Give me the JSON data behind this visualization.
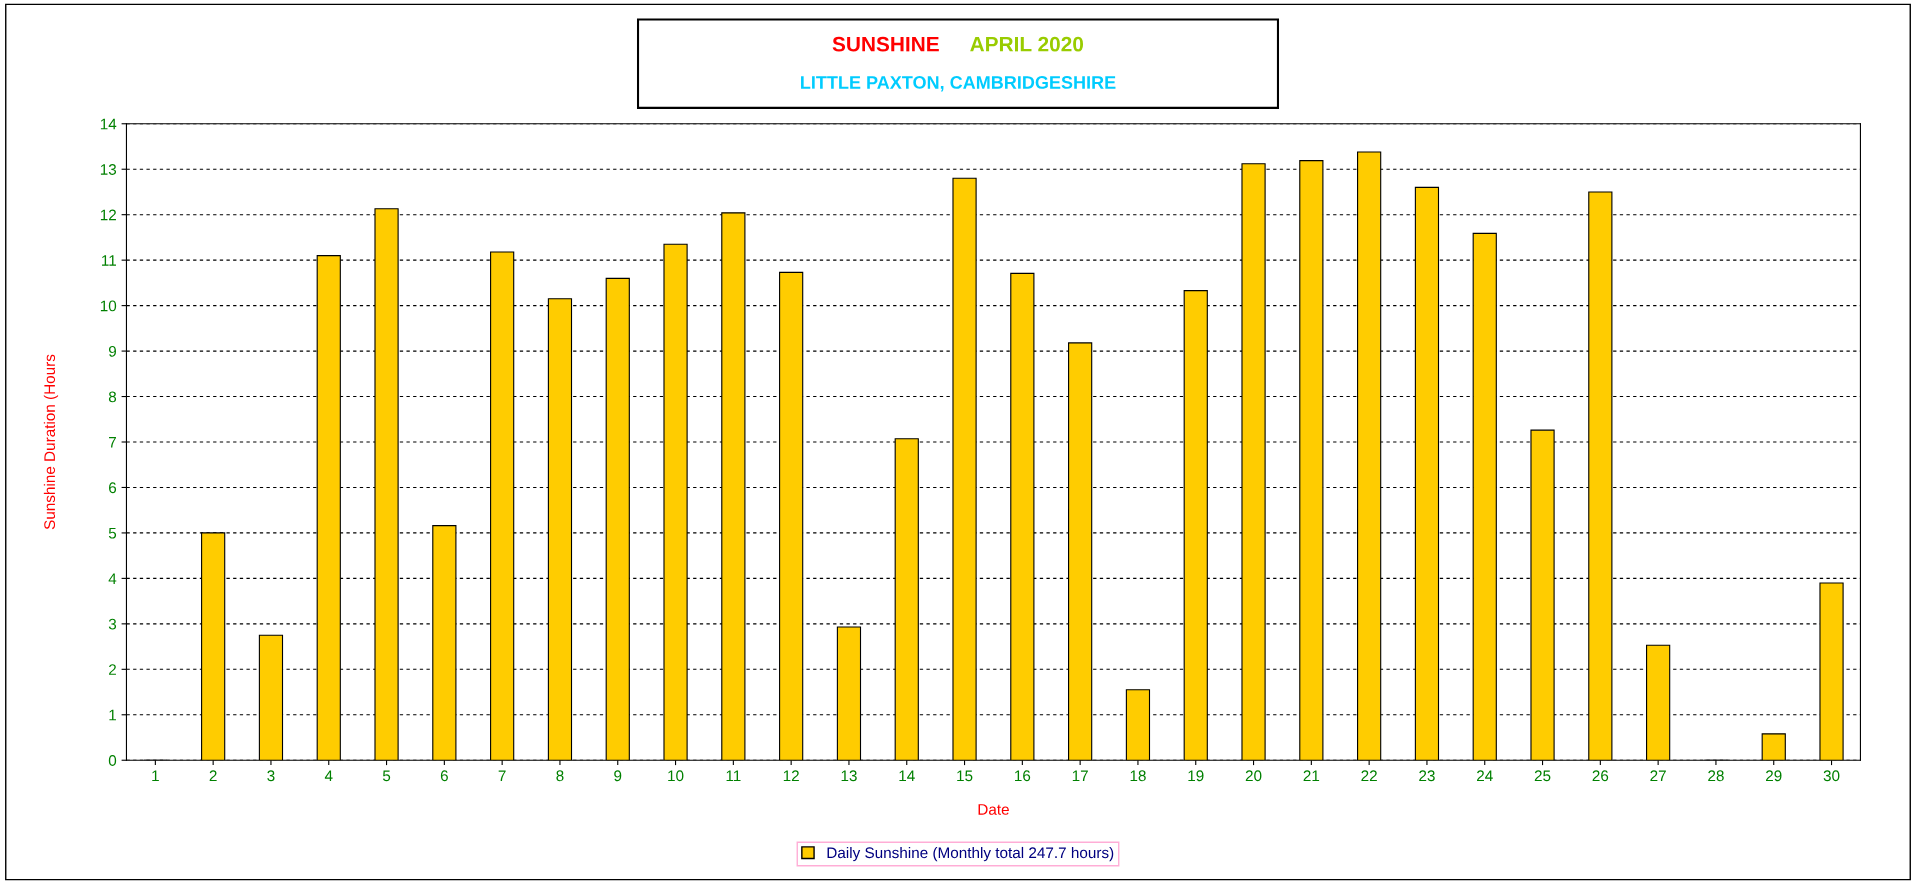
{
  "chart_data": {
    "type": "bar",
    "title": "SUNSHINE   APRIL 2020",
    "subtitle": "LITTLE PAXTON, CAMBRIDGESHIRE",
    "xlabel": "Date",
    "ylabel": "Sunshine Duration (Hours",
    "categories": [
      "1",
      "2",
      "3",
      "4",
      "5",
      "6",
      "7",
      "8",
      "9",
      "10",
      "11",
      "12",
      "13",
      "14",
      "15",
      "16",
      "17",
      "18",
      "19",
      "20",
      "21",
      "22",
      "23",
      "24",
      "25",
      "26",
      "27",
      "28",
      "29",
      "30"
    ],
    "series": [
      {
        "name": "Daily Sunshine (Monthly total 247.7 hours)",
        "color": "#ffcc00",
        "values": [
          0,
          5.0,
          2.75,
          11.1,
          12.13,
          5.16,
          11.18,
          10.15,
          10.6,
          11.35,
          12.04,
          10.73,
          2.93,
          7.07,
          12.8,
          10.71,
          9.18,
          1.55,
          10.33,
          13.12,
          13.19,
          13.38,
          12.6,
          11.59,
          7.26,
          12.5,
          2.53,
          0,
          0.58,
          3.9
        ]
      }
    ],
    "ylim": [
      0,
      14
    ],
    "yticks": [
      0,
      1,
      2,
      3,
      4,
      5,
      6,
      7,
      8,
      9,
      10,
      11,
      12,
      13,
      14
    ],
    "grid": "y",
    "legend": "bottom"
  }
}
